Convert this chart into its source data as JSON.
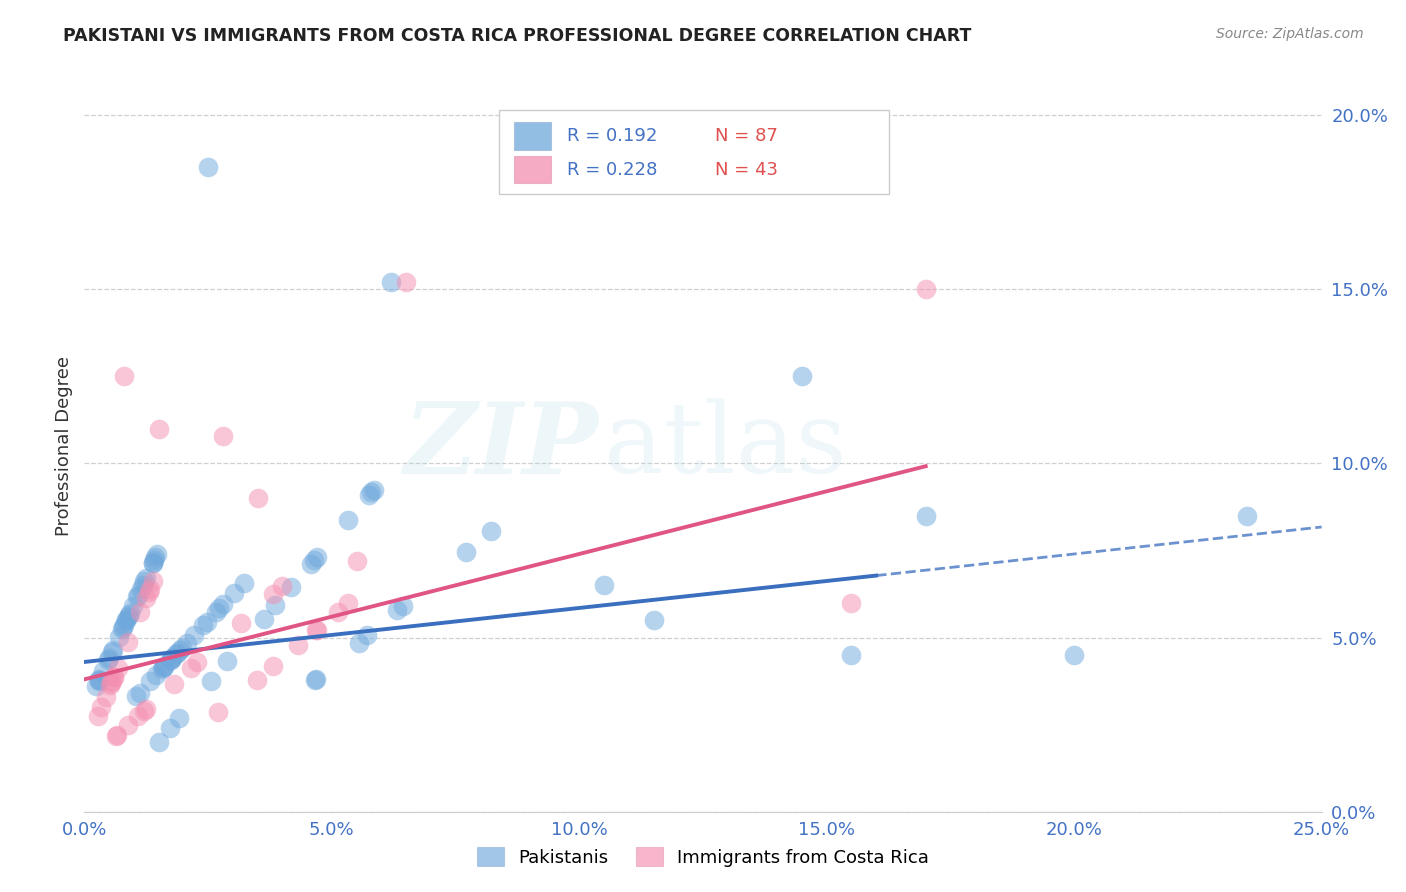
{
  "title": "PAKISTANI VS IMMIGRANTS FROM COSTA RICA PROFESSIONAL DEGREE CORRELATION CHART",
  "source": "Source: ZipAtlas.com",
  "ylabel": "Professional Degree",
  "xlim": [
    0.0,
    25.0
  ],
  "ylim": [
    0.0,
    21.0
  ],
  "pakistanis_color": "#6fa8dc",
  "costarica_color": "#f48fb1",
  "pakistanis_R": 0.192,
  "pakistanis_N": 87,
  "costarica_R": 0.228,
  "costarica_N": 43,
  "legend_pakistanis": "Pakistanis",
  "legend_costarica": "Immigrants from Costa Rica",
  "watermark_zip": "ZIP",
  "watermark_atlas": "atlas",
  "pak_line_intercept": 4.3,
  "pak_line_slope": 0.155,
  "pak_line_solid_end": 16.0,
  "pak_line_end": 25.0,
  "cr_line_intercept": 3.8,
  "cr_line_slope": 0.36,
  "cr_line_end": 17.0,
  "ytick_vals": [
    0,
    5,
    10,
    15,
    20
  ],
  "ytick_labels": [
    "0.0%",
    "5.0%",
    "10.0%",
    "15.0%",
    "20.0%"
  ],
  "xtick_vals": [
    0,
    5,
    10,
    15,
    20,
    25
  ],
  "xtick_labels": [
    "0.0%",
    "5.0%",
    "10.0%",
    "15.0%",
    "20.0%",
    "25.0%"
  ]
}
